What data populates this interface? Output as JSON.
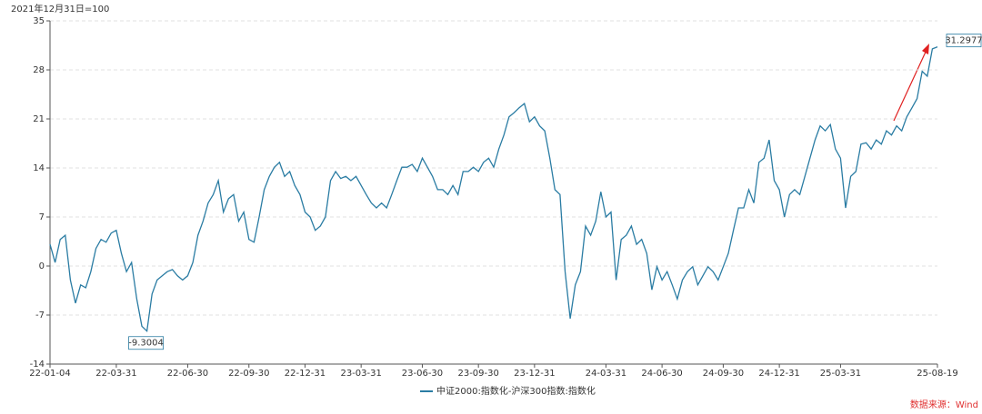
{
  "chart_data": {
    "type": "line",
    "subtitle": "2021年12月31日=100",
    "source": "数据来源：Wind",
    "categories": [
      "22-01-04",
      null,
      null,
      null,
      null,
      null,
      null,
      null,
      null,
      null,
      null,
      null,
      null,
      "22-03-31",
      null,
      null,
      null,
      null,
      null,
      null,
      null,
      null,
      null,
      null,
      null,
      null,
      null,
      "22-06-30",
      null,
      null,
      null,
      null,
      null,
      null,
      null,
      null,
      null,
      null,
      null,
      "22-09-30",
      null,
      null,
      null,
      null,
      null,
      null,
      null,
      null,
      null,
      null,
      "22-12-31",
      null,
      null,
      null,
      null,
      null,
      null,
      null,
      null,
      null,
      null,
      "23-03-31",
      null,
      null,
      null,
      null,
      null,
      null,
      null,
      null,
      null,
      null,
      null,
      "23-06-30",
      null,
      null,
      null,
      null,
      null,
      null,
      null,
      null,
      null,
      null,
      "23-09-30",
      null,
      null,
      null,
      null,
      null,
      null,
      null,
      null,
      null,
      null,
      "23-12-31",
      null,
      null,
      null,
      null,
      null,
      null,
      null,
      null,
      null,
      null,
      null,
      null,
      null,
      "24-03-31",
      null,
      null,
      null,
      null,
      null,
      null,
      null,
      null,
      null,
      null,
      "24-06-30",
      null,
      null,
      null,
      null,
      null,
      null,
      null,
      null,
      null,
      null,
      null,
      "24-09-30",
      null,
      null,
      null,
      null,
      null,
      null,
      null,
      null,
      null,
      null,
      "24-12-31",
      null,
      null,
      null,
      null,
      null,
      null,
      null,
      null,
      null,
      null,
      null,
      "25-03-31",
      null,
      null,
      null,
      null,
      null,
      null,
      null,
      null,
      null,
      null,
      null,
      null,
      null,
      null,
      null,
      null,
      null,
      null,
      "25-08-19"
    ],
    "series": [
      {
        "name": "中证2000:指数化-沪深300指数:指数化",
        "color": "#2a7ca3",
        "values": [
          3.1,
          0.5,
          3.8,
          4.4,
          -2,
          -5.3,
          -2.7,
          -3.1,
          -0.8,
          2.5,
          3.8,
          3.4,
          4.7,
          5.1,
          1.8,
          -0.8,
          0.5,
          -4.7,
          -8.6,
          -9.3004,
          -4,
          -2,
          -1.4,
          -0.8,
          -0.5,
          -1.4,
          -2,
          -1.4,
          0.5,
          4.4,
          6.4,
          9,
          10.2,
          12.2,
          7.7,
          9.6,
          10.2,
          6.4,
          7.7,
          3.8,
          3.4,
          7,
          10.9,
          12.8,
          14.1,
          14.8,
          12.8,
          13.5,
          11.5,
          10.2,
          7.7,
          7,
          5.1,
          5.7,
          7,
          12.2,
          13.5,
          12.5,
          12.8,
          12.2,
          12.8,
          11.5,
          10.2,
          9,
          8.3,
          9,
          8.3,
          10.2,
          12.2,
          14.1,
          14.1,
          14.5,
          13.5,
          15.4,
          14.1,
          12.8,
          10.9,
          10.9,
          10.2,
          11.5,
          10.2,
          13.5,
          13.5,
          14.1,
          13.5,
          14.8,
          15.4,
          14.1,
          16.7,
          18.7,
          21.3,
          21.9,
          22.6,
          23.2,
          20.6,
          21.3,
          20,
          19.3,
          15.4,
          10.9,
          10.2,
          -0.8,
          -7.5,
          -2.7,
          -0.8,
          5.7,
          4.4,
          6.4,
          10.6,
          7,
          7.7,
          -2,
          3.8,
          4.4,
          5.7,
          3.1,
          3.8,
          1.8,
          -3.4,
          -0.1,
          -2,
          -0.8,
          -2.7,
          -4.7,
          -2,
          -0.8,
          -0.1,
          -2.7,
          -1.4,
          -0.1,
          -0.8,
          -2,
          -0.1,
          1.8,
          5.1,
          8.3,
          8.3,
          10.9,
          9,
          14.8,
          15.4,
          18,
          12.2,
          10.9,
          7,
          10.2,
          10.9,
          10.2,
          12.8,
          15.4,
          18,
          20,
          19.3,
          20.2,
          16.7,
          15.4,
          8.3,
          12.8,
          13.5,
          17.4,
          17.6,
          16.7,
          18,
          17.4,
          19.3,
          18.7,
          20,
          19.3,
          21.3,
          22.6,
          23.9,
          27.8,
          27.1,
          31,
          31.2977
        ]
      }
    ],
    "value_labels": {
      "19": "-9.3004",
      "174": "31.2977"
    },
    "ylim": [
      -14,
      35
    ],
    "yticks": [
      -14,
      -7,
      0,
      7,
      14,
      21,
      28,
      35
    ],
    "grid": true,
    "legend": "bottom"
  }
}
